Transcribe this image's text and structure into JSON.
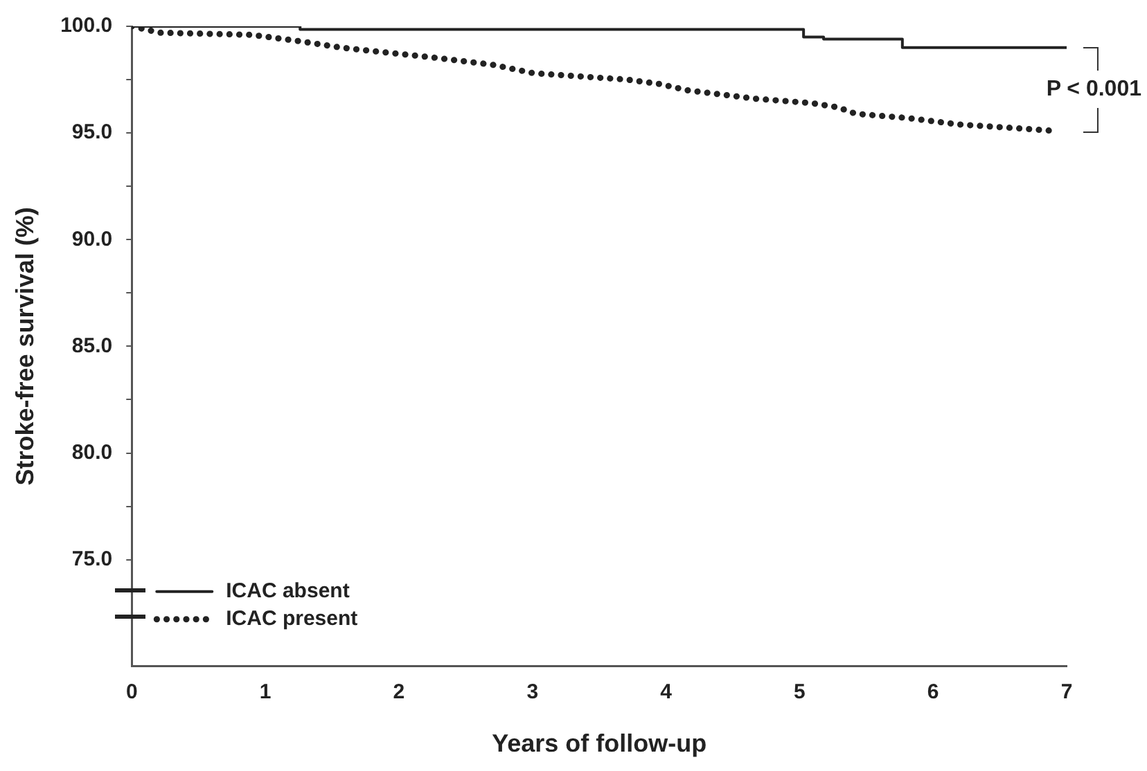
{
  "chart_data": {
    "type": "step",
    "xlabel": "Years of follow-up",
    "ylabel": "Stroke-free survival (%)",
    "xlim": [
      0,
      7
    ],
    "xticks": [
      0,
      1,
      2,
      3,
      4,
      5,
      6,
      7
    ],
    "ylim": [
      70,
      100
    ],
    "yticks": [
      {
        "value": 75,
        "label": "75.0"
      },
      {
        "value": 77.5,
        "label": null
      },
      {
        "value": 80,
        "label": "80.0"
      },
      {
        "value": 82.5,
        "label": null
      },
      {
        "value": 85,
        "label": "85.0"
      },
      {
        "value": 87.5,
        "label": null
      },
      {
        "value": 90,
        "label": "90.0"
      },
      {
        "value": 92.5,
        "label": null
      },
      {
        "value": 95,
        "label": "95.0"
      },
      {
        "value": 97.5,
        "label": null
      },
      {
        "value": 100,
        "label": "100.0"
      }
    ],
    "series": [
      {
        "name": "ICAC absent",
        "color": "#222222",
        "line_style": "solid",
        "x": [
          0,
          1.26,
          5.03,
          5.18,
          5.77,
          7.0
        ],
        "values": [
          100,
          99.85,
          99.5,
          99.4,
          99.0,
          99.0
        ]
      },
      {
        "name": "ICAC present",
        "color": "#222222",
        "type": "line",
        "line_style": "dotted",
        "x": [
          0,
          0.21,
          0.9,
          1.26,
          1.57,
          2.31,
          2.7,
          3.01,
          3.71,
          3.95,
          4.16,
          4.68,
          5.09,
          5.29,
          5.42,
          5.81,
          6.19,
          6.68,
          6.9
        ],
        "values": [
          100,
          99.7,
          99.6,
          99.3,
          99.0,
          98.5,
          98.2,
          97.8,
          97.5,
          97.3,
          97.0,
          96.6,
          96.4,
          96.2,
          95.9,
          95.7,
          95.4,
          95.2,
          95.1
        ]
      }
    ],
    "annotations": [
      "P < 0.001"
    ],
    "grid": false,
    "legend": "bottom left",
    "marker": "none"
  }
}
